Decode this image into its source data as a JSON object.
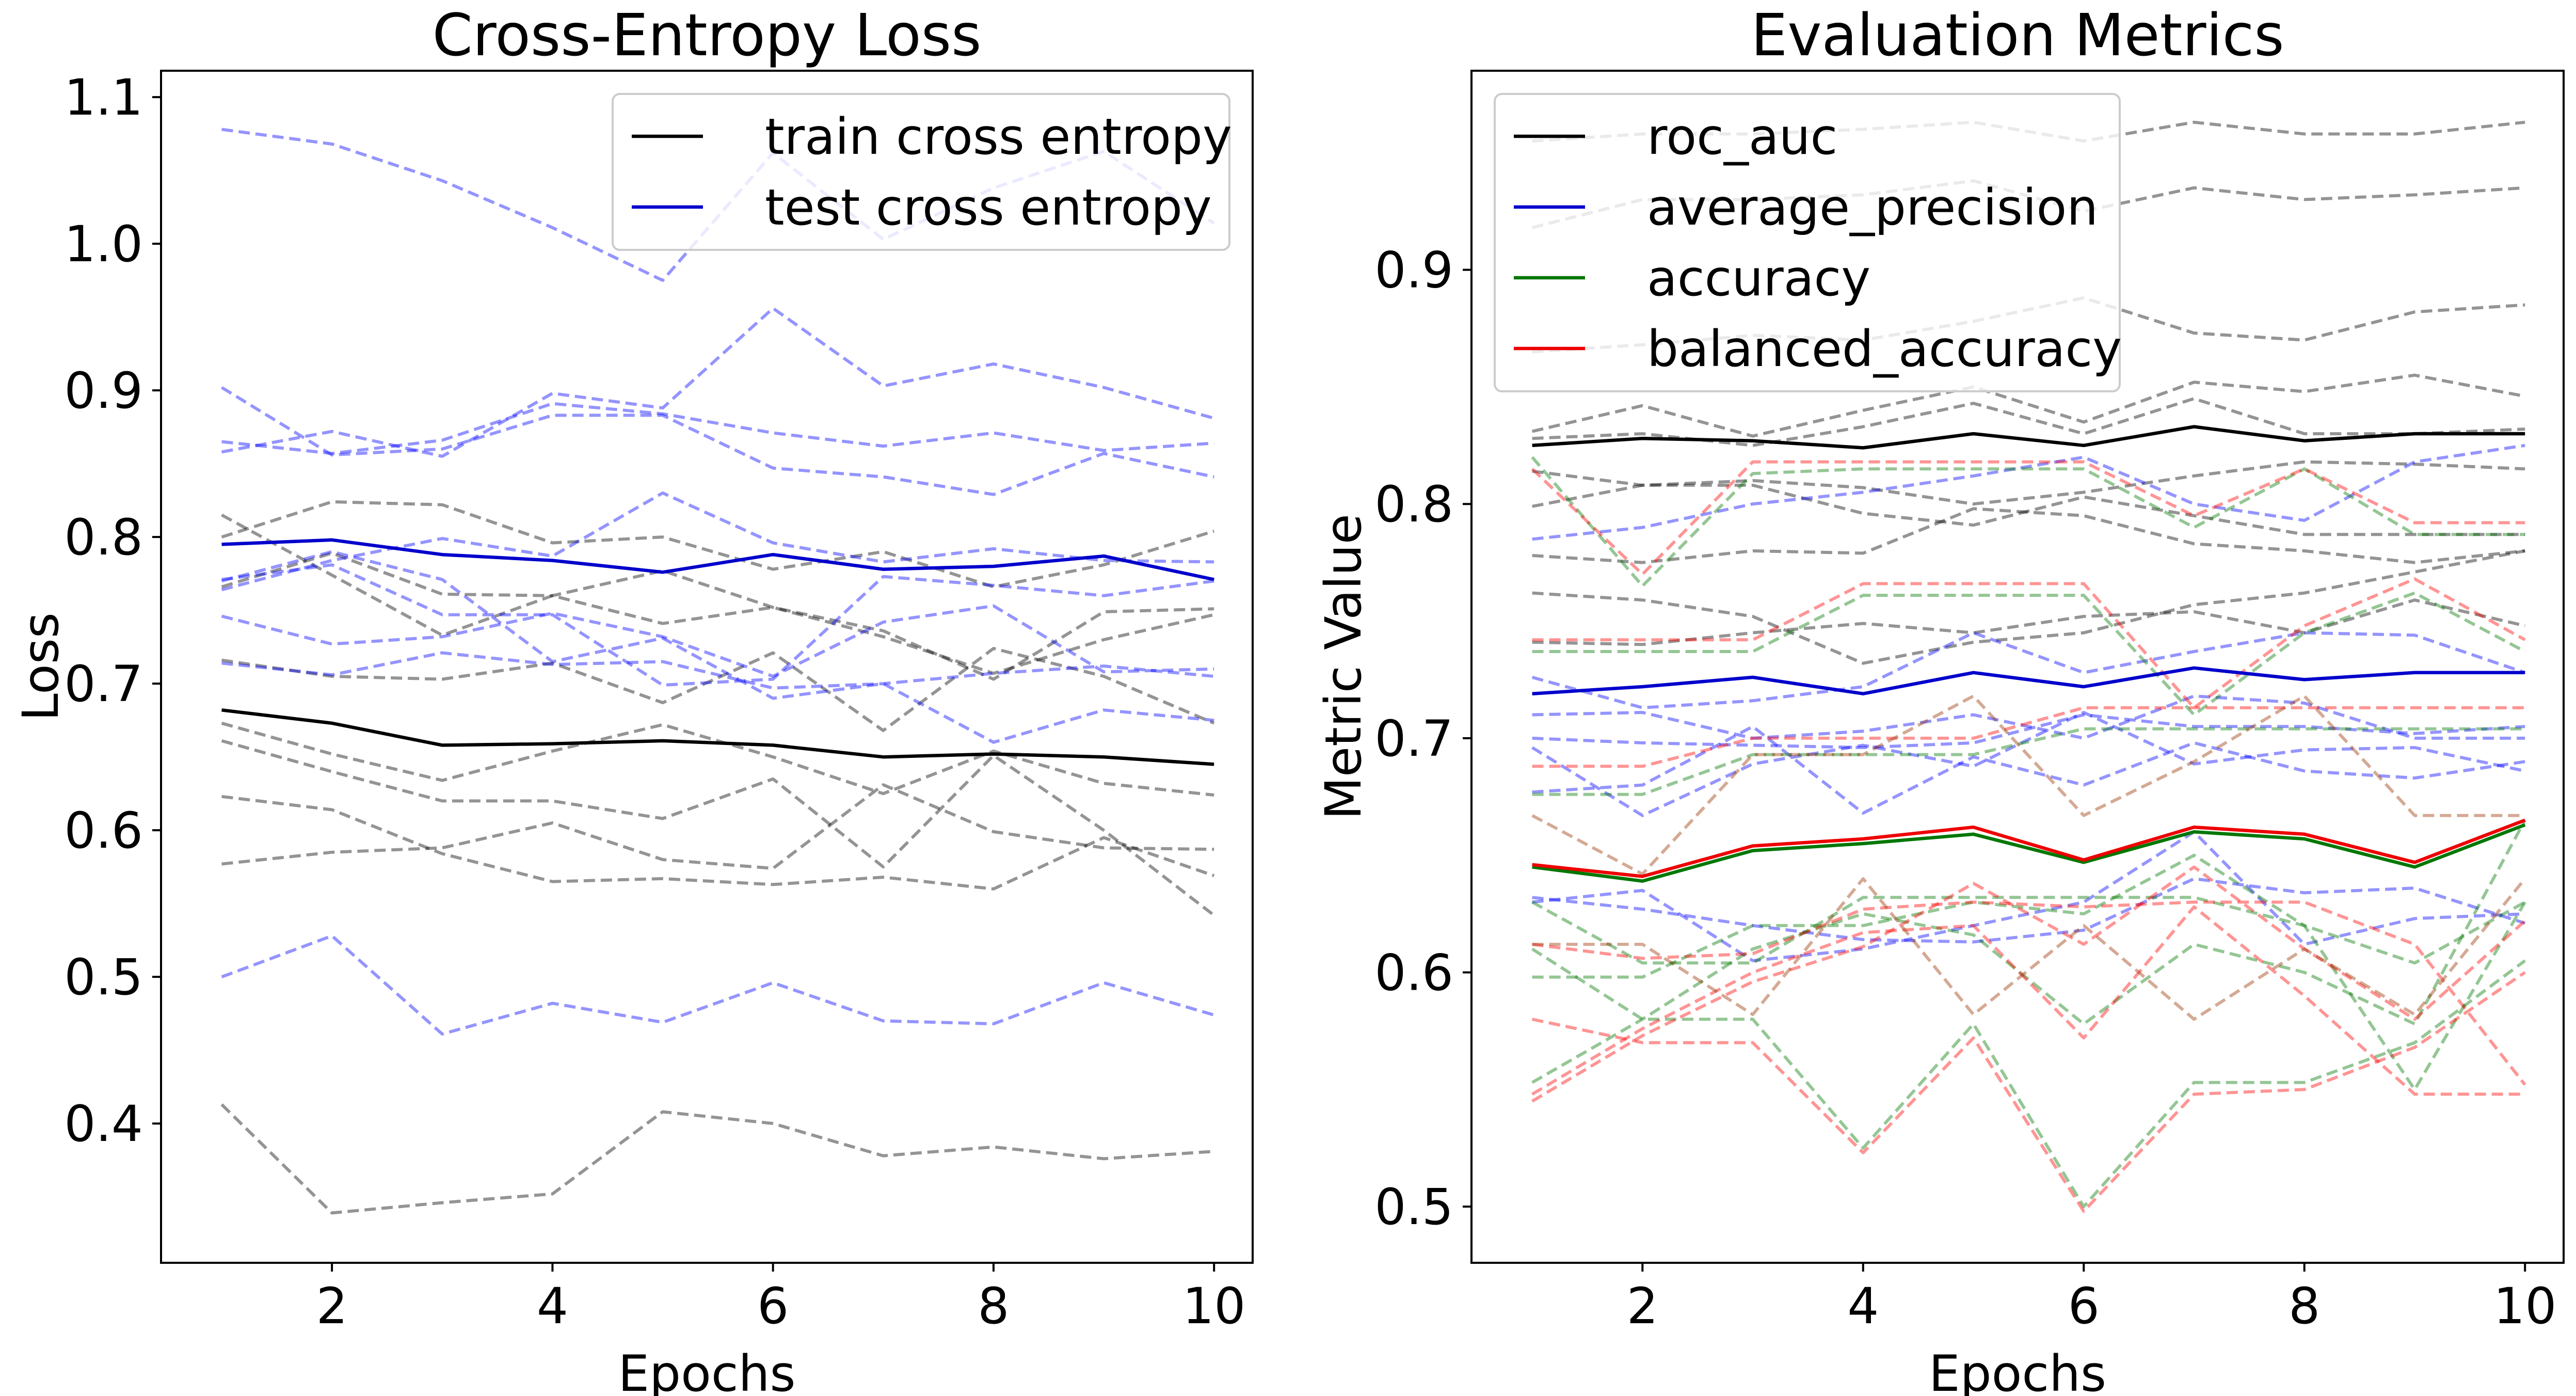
{
  "chart_data": [
    {
      "type": "line",
      "title": "Cross-Entropy Loss",
      "xlabel": "Epochs",
      "ylabel": "Loss",
      "x": [
        1,
        2,
        3,
        4,
        5,
        6,
        7,
        8,
        9,
        10
      ],
      "xlim": [
        0.45,
        10.35
      ],
      "ylim": [
        0.305,
        1.118
      ],
      "xticks": [
        "2",
        "4",
        "6",
        "8",
        "10"
      ],
      "yticks": [
        "0.4",
        "0.5",
        "0.6",
        "0.7",
        "0.8",
        "0.9",
        "1.0",
        "1.1"
      ],
      "legend_position": "top-right",
      "grid": false,
      "series": [
        {
          "name": "train cross entropy",
          "color": "#000000",
          "values": [
            0.682,
            0.673,
            0.658,
            0.659,
            0.661,
            0.658,
            0.65,
            0.652,
            0.65,
            0.645
          ]
        },
        {
          "name": "test cross entropy",
          "color": "#0000cc",
          "values": [
            0.795,
            0.798,
            0.788,
            0.784,
            0.776,
            0.788,
            0.778,
            0.78,
            0.787,
            0.771
          ]
        }
      ],
      "fold_lines": [
        {
          "color": "#000000",
          "values": [
            0.413,
            0.339,
            0.346,
            0.352,
            0.408,
            0.4,
            0.378,
            0.384,
            0.376,
            0.381
          ]
        },
        {
          "color": "#000000",
          "values": [
            0.577,
            0.585,
            0.588,
            0.605,
            0.58,
            0.574,
            0.631,
            0.599,
            0.588,
            0.587
          ]
        },
        {
          "color": "#000000",
          "values": [
            0.623,
            0.614,
            0.584,
            0.565,
            0.567,
            0.563,
            0.568,
            0.56,
            0.595,
            0.569
          ]
        },
        {
          "color": "#000000",
          "values": [
            0.661,
            0.64,
            0.62,
            0.62,
            0.608,
            0.635,
            0.575,
            0.651,
            0.6,
            0.542
          ]
        },
        {
          "color": "#000000",
          "values": [
            0.673,
            0.652,
            0.634,
            0.654,
            0.672,
            0.65,
            0.625,
            0.654,
            0.632,
            0.624
          ]
        },
        {
          "color": "#000000",
          "values": [
            0.716,
            0.705,
            0.703,
            0.714,
            0.687,
            0.721,
            0.668,
            0.724,
            0.705,
            0.673
          ]
        },
        {
          "color": "#000000",
          "values": [
            0.766,
            0.789,
            0.761,
            0.76,
            0.777,
            0.752,
            0.736,
            0.703,
            0.749,
            0.751
          ]
        },
        {
          "color": "#000000",
          "values": [
            0.8,
            0.824,
            0.822,
            0.796,
            0.8,
            0.778,
            0.79,
            0.766,
            0.781,
            0.804
          ]
        },
        {
          "color": "#000000",
          "values": [
            0.815,
            0.774,
            0.733,
            0.76,
            0.741,
            0.752,
            0.732,
            0.707,
            0.73,
            0.747
          ]
        },
        {
          "color": "#0000ff",
          "values": [
            0.5,
            0.528,
            0.461,
            0.482,
            0.469,
            0.496,
            0.47,
            0.468,
            0.496,
            0.474
          ]
        },
        {
          "color": "#0000ff",
          "values": [
            0.714,
            0.706,
            0.721,
            0.713,
            0.715,
            0.697,
            0.7,
            0.707,
            0.712,
            0.705
          ]
        },
        {
          "color": "#0000ff",
          "values": [
            0.746,
            0.727,
            0.732,
            0.748,
            0.732,
            0.705,
            0.742,
            0.753,
            0.708,
            0.71
          ]
        },
        {
          "color": "#0000ff",
          "values": [
            0.764,
            0.784,
            0.799,
            0.787,
            0.83,
            0.796,
            0.783,
            0.792,
            0.784,
            0.783
          ]
        },
        {
          "color": "#0000ff",
          "values": [
            0.771,
            0.781,
            0.747,
            0.747,
            0.699,
            0.703,
            0.773,
            0.767,
            0.76,
            0.77
          ]
        },
        {
          "color": "#0000ff",
          "values": [
            0.77,
            0.79,
            0.771,
            0.715,
            0.731,
            0.69,
            0.7,
            0.66,
            0.682,
            0.675
          ]
        },
        {
          "color": "#0000ff",
          "values": [
            0.858,
            0.872,
            0.855,
            0.898,
            0.888,
            0.956,
            0.903,
            0.918,
            0.902,
            0.881
          ]
        },
        {
          "color": "#0000ff",
          "values": [
            0.865,
            0.857,
            0.866,
            0.891,
            0.884,
            0.871,
            0.862,
            0.871,
            0.859,
            0.864
          ]
        },
        {
          "color": "#0000ff",
          "values": [
            0.902,
            0.856,
            0.86,
            0.883,
            0.883,
            0.847,
            0.841,
            0.829,
            0.857,
            0.841
          ]
        },
        {
          "color": "#0000ff",
          "values": [
            1.078,
            1.068,
            1.043,
            1.011,
            0.975,
            1.062,
            1.003,
            1.038,
            1.063,
            1.014
          ]
        }
      ]
    },
    {
      "type": "line",
      "title": "Evaluation Metrics",
      "xlabel": "Epochs",
      "ylabel": "Metric Value",
      "x": [
        1,
        2,
        3,
        4,
        5,
        6,
        7,
        8,
        9,
        10
      ],
      "xlim": [
        0.45,
        10.35
      ],
      "ylim": [
        0.476,
        0.985
      ],
      "xticks": [
        "2",
        "4",
        "6",
        "8",
        "10"
      ],
      "yticks": [
        "0.5",
        "0.6",
        "0.7",
        "0.8",
        "0.9"
      ],
      "legend_position": "top-left",
      "grid": false,
      "series": [
        {
          "name": "roc_auc",
          "color": "#000000",
          "values": [
            0.825,
            0.828,
            0.827,
            0.824,
            0.83,
            0.825,
            0.833,
            0.827,
            0.83,
            0.83
          ]
        },
        {
          "name": "average_precision",
          "color": "#0000cc",
          "values": [
            0.719,
            0.722,
            0.726,
            0.719,
            0.728,
            0.722,
            0.73,
            0.725,
            0.728,
            0.728
          ]
        },
        {
          "name": "accuracy",
          "color": "#007700",
          "values": [
            0.645,
            0.639,
            0.652,
            0.655,
            0.659,
            0.647,
            0.66,
            0.657,
            0.645,
            0.663
          ]
        },
        {
          "name": "balanced_accuracy",
          "color": "#ee0000",
          "values": [
            0.646,
            0.641,
            0.654,
            0.657,
            0.662,
            0.648,
            0.662,
            0.659,
            0.647,
            0.665
          ]
        }
      ],
      "fold_lines": [
        {
          "color": "#000000",
          "values": [
            0.955,
            0.958,
            0.958,
            0.96,
            0.963,
            0.955,
            0.963,
            0.958,
            0.958,
            0.963
          ]
        },
        {
          "color": "#000000",
          "values": [
            0.918,
            0.93,
            0.93,
            0.932,
            0.938,
            0.925,
            0.935,
            0.93,
            0.932,
            0.935
          ]
        },
        {
          "color": "#000000",
          "values": [
            0.865,
            0.868,
            0.872,
            0.87,
            0.878,
            0.888,
            0.873,
            0.87,
            0.882,
            0.885
          ]
        },
        {
          "color": "#000000",
          "values": [
            0.831,
            0.842,
            0.829,
            0.84,
            0.85,
            0.835,
            0.852,
            0.848,
            0.855,
            0.846
          ]
        },
        {
          "color": "#000000",
          "values": [
            0.828,
            0.83,
            0.825,
            0.833,
            0.843,
            0.83,
            0.845,
            0.83,
            0.83,
            0.832
          ]
        },
        {
          "color": "#000000",
          "values": [
            0.814,
            0.808,
            0.81,
            0.807,
            0.8,
            0.805,
            0.812,
            0.818,
            0.817,
            0.815
          ]
        },
        {
          "color": "#000000",
          "values": [
            0.799,
            0.808,
            0.808,
            0.796,
            0.791,
            0.803,
            0.795,
            0.787,
            0.787,
            0.787
          ]
        },
        {
          "color": "#000000",
          "values": [
            0.778,
            0.775,
            0.78,
            0.779,
            0.798,
            0.795,
            0.783,
            0.78,
            0.775,
            0.78
          ]
        },
        {
          "color": "#000000",
          "values": [
            0.762,
            0.759,
            0.752,
            0.732,
            0.741,
            0.745,
            0.757,
            0.762,
            0.771,
            0.78
          ]
        },
        {
          "color": "#000000",
          "values": [
            0.741,
            0.74,
            0.745,
            0.749,
            0.745,
            0.752,
            0.754,
            0.745,
            0.759,
            0.748
          ]
        },
        {
          "color": "#0000ff",
          "values": [
            0.785,
            0.79,
            0.8,
            0.805,
            0.812,
            0.82,
            0.8,
            0.793,
            0.818,
            0.825
          ]
        },
        {
          "color": "#0000ff",
          "values": [
            0.726,
            0.713,
            0.716,
            0.722,
            0.745,
            0.728,
            0.737,
            0.745,
            0.744,
            0.728
          ]
        },
        {
          "color": "#0000ff",
          "values": [
            0.71,
            0.711,
            0.7,
            0.703,
            0.71,
            0.7,
            0.718,
            0.715,
            0.7,
            0.7
          ]
        },
        {
          "color": "#0000ff",
          "values": [
            0.7,
            0.698,
            0.697,
            0.696,
            0.698,
            0.71,
            0.705,
            0.705,
            0.702,
            0.705
          ]
        },
        {
          "color": "#0000ff",
          "values": [
            0.696,
            0.667,
            0.689,
            0.697,
            0.688,
            0.711,
            0.689,
            0.695,
            0.696,
            0.686
          ]
        },
        {
          "color": "#0000ff",
          "values": [
            0.677,
            0.68,
            0.705,
            0.668,
            0.692,
            0.68,
            0.698,
            0.686,
            0.683,
            0.69
          ]
        },
        {
          "color": "#0000ff",
          "values": [
            0.632,
            0.627,
            0.62,
            0.614,
            0.613,
            0.618,
            0.64,
            0.634,
            0.636,
            0.621
          ]
        },
        {
          "color": "#0000ff",
          "values": [
            0.63,
            0.635,
            0.605,
            0.61,
            0.62,
            0.63,
            0.66,
            0.612,
            0.623,
            0.625
          ]
        },
        {
          "color": "#007700",
          "values": [
            0.82,
            0.765,
            0.813,
            0.815,
            0.815,
            0.815,
            0.79,
            0.815,
            0.787,
            0.787
          ]
        },
        {
          "color": "#007700",
          "values": [
            0.737,
            0.737,
            0.737,
            0.761,
            0.761,
            0.761,
            0.71,
            0.745,
            0.762,
            0.737
          ]
        },
        {
          "color": "#007700",
          "values": [
            0.676,
            0.676,
            0.693,
            0.693,
            0.693,
            0.704,
            0.704,
            0.704,
            0.704,
            0.704
          ]
        },
        {
          "color": "#007700",
          "values": [
            0.63,
            0.604,
            0.604,
            0.632,
            0.632,
            0.632,
            0.632,
            0.62,
            0.604,
            0.63
          ]
        },
        {
          "color": "#007700",
          "values": [
            0.61,
            0.58,
            0.58,
            0.525,
            0.578,
            0.5,
            0.553,
            0.553,
            0.57,
            0.605
          ]
        },
        {
          "color": "#007700",
          "values": [
            0.553,
            0.58,
            0.61,
            0.625,
            0.616,
            0.578,
            0.612,
            0.6,
            0.578,
            0.665
          ]
        },
        {
          "color": "#007700",
          "values": [
            0.598,
            0.598,
            0.62,
            0.62,
            0.63,
            0.625,
            0.65,
            0.62,
            0.55,
            0.63
          ]
        },
        {
          "color": "#ff0000",
          "values": [
            0.815,
            0.77,
            0.818,
            0.818,
            0.818,
            0.818,
            0.795,
            0.815,
            0.792,
            0.792
          ]
        },
        {
          "color": "#ff0000",
          "values": [
            0.742,
            0.742,
            0.742,
            0.766,
            0.766,
            0.766,
            0.713,
            0.748,
            0.768,
            0.742
          ]
        },
        {
          "color": "#ff0000",
          "values": [
            0.688,
            0.688,
            0.7,
            0.7,
            0.7,
            0.713,
            0.713,
            0.713,
            0.713,
            0.713
          ]
        },
        {
          "color": "#ff0000",
          "values": [
            0.612,
            0.606,
            0.608,
            0.627,
            0.63,
            0.628,
            0.63,
            0.63,
            0.612,
            0.552
          ]
        },
        {
          "color": "#ff0000",
          "values": [
            0.58,
            0.57,
            0.57,
            0.523,
            0.572,
            0.498,
            0.548,
            0.55,
            0.568,
            0.6
          ]
        },
        {
          "color": "#ff0000",
          "values": [
            0.548,
            0.576,
            0.6,
            0.617,
            0.62,
            0.572,
            0.628,
            0.59,
            0.548,
            0.548
          ]
        },
        {
          "color": "#ff0000",
          "values": [
            0.545,
            0.573,
            0.596,
            0.611,
            0.638,
            0.612,
            0.645,
            0.61,
            0.58,
            0.622
          ]
        },
        {
          "color": "#993300",
          "values": [
            0.667,
            0.642,
            0.693,
            0.693,
            0.718,
            0.667,
            0.69,
            0.718,
            0.667,
            0.667
          ]
        },
        {
          "color": "#993300",
          "values": [
            0.612,
            0.612,
            0.582,
            0.64,
            0.582,
            0.62,
            0.58,
            0.61,
            0.582,
            0.64
          ]
        }
      ]
    }
  ]
}
